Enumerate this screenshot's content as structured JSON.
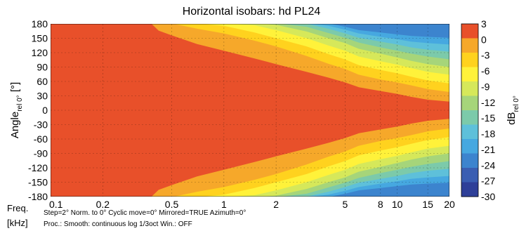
{
  "chart_data": {
    "type": "heatmap",
    "title": "Horizontal isobars: hd PL24",
    "ylabel": "Angle rel 0° [°]",
    "xlabel": "Freq. [kHz]",
    "x_scale": "log",
    "xlim": [
      0.1,
      20
    ],
    "ylim": [
      -180,
      180
    ],
    "x_ticks": [
      0.1,
      0.2,
      0.5,
      1,
      2,
      5,
      8,
      10,
      15,
      20
    ],
    "x_tick_labels": [
      "0.1",
      "0.2",
      "0.5",
      "1",
      "2",
      "5",
      "8",
      "10",
      "15",
      "20"
    ],
    "y_ticks": [
      180,
      150,
      120,
      90,
      60,
      30,
      0,
      -30,
      -60,
      -90,
      -120,
      -150,
      -180
    ],
    "y_tick_labels": [
      "180",
      "150",
      "120",
      "90",
      "60",
      "30",
      "0",
      "-30",
      "-60",
      "-90",
      "-120",
      "-150",
      "-180"
    ],
    "grid": true,
    "colorbar": {
      "label": "dB rel 0°",
      "ticks": [
        3,
        0,
        -3,
        -6,
        -9,
        -12,
        -15,
        -18,
        -21,
        -24,
        -27,
        -30
      ],
      "tick_labels": [
        "3",
        "0",
        "-3",
        "-6",
        "-9",
        "-12",
        "-15",
        "-18",
        "-21",
        "-24",
        "-27",
        "-30"
      ],
      "colors": [
        "#E8502A",
        "#F6A82A",
        "#FFD21E",
        "#FFF23A",
        "#D6E85A",
        "#A6D57A",
        "#7CCAAA",
        "#5EC0DA",
        "#46A8E0",
        "#3C84CE",
        "#3A5EB2",
        "#2E3F98"
      ]
    },
    "isobar_boundaries_deg": {
      "freq_khz": [
        0.1,
        0.3,
        0.38,
        0.42,
        0.5,
        0.7,
        1,
        1.5,
        2,
        3,
        4,
        5,
        6,
        8,
        10,
        12,
        15,
        20
      ],
      "minus_3": [
        181,
        181,
        181,
        166,
        156,
        138,
        124,
        108,
        96,
        80,
        68,
        58,
        48,
        40,
        34,
        28,
        22,
        18
      ],
      "minus_6": [
        181,
        181,
        181,
        181,
        181,
        170,
        160,
        145,
        133,
        113,
        97,
        86,
        74,
        64,
        58,
        52,
        44,
        38
      ],
      "minus_9": [
        181,
        181,
        181,
        181,
        181,
        181,
        176,
        162,
        150,
        133,
        117,
        106,
        94,
        84,
        77,
        70,
        62,
        56
      ],
      "minus_12": [
        181,
        181,
        181,
        181,
        181,
        181,
        181,
        177,
        167,
        150,
        135,
        124,
        112,
        102,
        95,
        88,
        80,
        74
      ],
      "minus_15": [
        181,
        181,
        181,
        181,
        181,
        181,
        181,
        181,
        178,
        164,
        150,
        140,
        128,
        118,
        110,
        103,
        96,
        90
      ],
      "minus_18": [
        181,
        181,
        181,
        181,
        181,
        181,
        181,
        181,
        181,
        174,
        161,
        151,
        141,
        131,
        124,
        118,
        112,
        106
      ],
      "minus_21": [
        181,
        181,
        181,
        181,
        181,
        181,
        181,
        181,
        181,
        180,
        170,
        160,
        151,
        143,
        137,
        131,
        126,
        122
      ],
      "minus_24": [
        181,
        181,
        181,
        181,
        181,
        181,
        181,
        181,
        181,
        181,
        176,
        168,
        160,
        153,
        148,
        143,
        140,
        137
      ],
      "minus_27": [
        181,
        181,
        181,
        181,
        181,
        181,
        181,
        181,
        181,
        181,
        181,
        174,
        167,
        162,
        158,
        155,
        153,
        151
      ]
    }
  },
  "notes": {
    "line1": "Step=2°   Norm. to 0°   Cyclic move=0°   Mirrored=TRUE   Azimuth=0°",
    "line2": "Proc.: Smooth: continuous log 1/3oct    Win.: OFF",
    "freq_label": "Freq.",
    "unit_label": "[kHz]"
  }
}
